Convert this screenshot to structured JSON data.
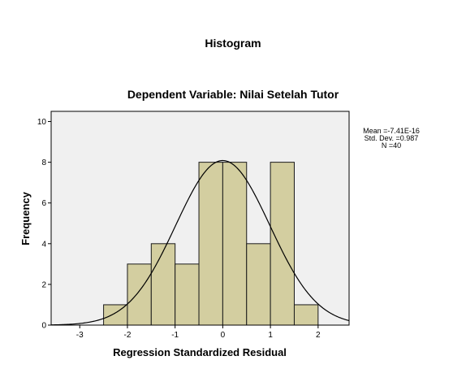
{
  "chart_data": {
    "type": "bar",
    "title": "Histogram",
    "subtitle": "Dependent Variable: Nilai Setelah Tutor",
    "xlabel": "Regression Standardized Residual",
    "ylabel": "Frequency",
    "xlim": [
      -3.6,
      2.65
    ],
    "ylim": [
      0,
      10.5
    ],
    "x_ticks": [
      -3,
      -2,
      -1,
      0,
      1,
      2
    ],
    "y_ticks": [
      0,
      2,
      4,
      6,
      8,
      10
    ],
    "bin_width": 0.5,
    "bins": [
      {
        "start": -2.5,
        "end": -2.0,
        "count": 1
      },
      {
        "start": -2.0,
        "end": -1.5,
        "count": 3
      },
      {
        "start": -1.5,
        "end": -1.0,
        "count": 4
      },
      {
        "start": -1.0,
        "end": -0.5,
        "count": 3
      },
      {
        "start": -0.5,
        "end": 0.0,
        "count": 8
      },
      {
        "start": 0.0,
        "end": 0.5,
        "count": 8
      },
      {
        "start": 0.5,
        "end": 1.0,
        "count": 4
      },
      {
        "start": 1.0,
        "end": 1.5,
        "count": 8
      },
      {
        "start": 1.5,
        "end": 2.0,
        "count": 1
      }
    ],
    "normal_curve": {
      "mean": -7.41e-16,
      "std": 0.987,
      "n": 40
    },
    "stats_labels": [
      "Mean =-7.41E-16",
      "Std. Dev. =0.987",
      "N =40"
    ],
    "grid": false,
    "colors": {
      "bar_fill": "#d3cea0",
      "bar_stroke": "#1a1a1a",
      "plot_bg": "#f0f0f0",
      "curve": "#000000"
    }
  }
}
